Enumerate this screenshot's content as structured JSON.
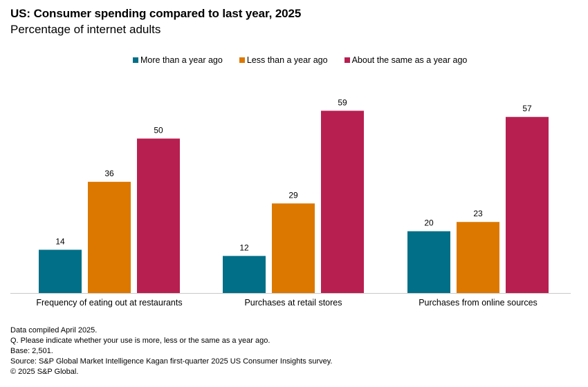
{
  "chart_data": {
    "type": "bar",
    "title": "US: Consumer spending compared to last year, 2025",
    "subtitle": "Percentage of internet adults",
    "categories": [
      "Frequency of eating out at restaurants",
      "Purchases at retail stores",
      "Purchases from online sources"
    ],
    "series": [
      {
        "name": "More than a year ago",
        "color": "#006f87",
        "values": [
          14,
          12,
          20
        ]
      },
      {
        "name": "Less than a year ago",
        "color": "#dc7800",
        "values": [
          36,
          29,
          23
        ]
      },
      {
        "name": "About the same as a year ago",
        "color": "#b81f51",
        "values": [
          50,
          59,
          57
        ]
      }
    ],
    "xlabel": "",
    "ylabel": "",
    "ylim": [
      0,
      60
    ],
    "grid": false,
    "legend_position": "top-center",
    "data_labels": true
  },
  "footer": {
    "lines": [
      "Data compiled April 2025.",
      "Q. Please indicate whether your use is more, less or the same as a year ago.",
      "Base: 2,501.",
      "Source: S&P Global Market Intelligence Kagan first-quarter 2025 US Consumer Insights survey.",
      "© 2025 S&P Global."
    ]
  }
}
